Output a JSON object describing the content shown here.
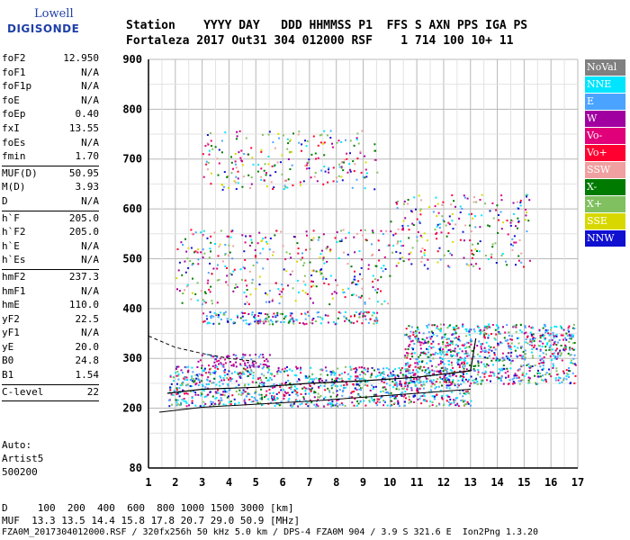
{
  "logo": {
    "line1": "Lowell",
    "line2": "DIGISONDE"
  },
  "header": {
    "labels": "Station    YYYY DAY   DDD HHMMSS P1  FFS S AXN PPS IGA PS",
    "values": "Fortaleza 2017 Out31 304 012000 RSF    1 714 100 10+ 11"
  },
  "params": [
    {
      "k": "foF2",
      "v": "12.950"
    },
    {
      "k": "foF1",
      "v": "N/A"
    },
    {
      "k": "foF1p",
      "v": "N/A"
    },
    {
      "k": "foE",
      "v": "N/A"
    },
    {
      "k": "foEp",
      "v": "0.40"
    },
    {
      "k": "fxI",
      "v": "13.55"
    },
    {
      "k": "foEs",
      "v": "N/A"
    },
    {
      "k": "fmin",
      "v": "1.70"
    },
    {
      "sep": true
    },
    {
      "k": "MUF(D)",
      "v": "50.95"
    },
    {
      "k": "M(D)",
      "v": "3.93"
    },
    {
      "k": "D",
      "v": "N/A"
    },
    {
      "sep": true
    },
    {
      "k": "h`F",
      "v": "205.0"
    },
    {
      "k": "h`F2",
      "v": "205.0"
    },
    {
      "k": "h`E",
      "v": "N/A"
    },
    {
      "k": "h`Es",
      "v": "N/A"
    },
    {
      "sep": true
    },
    {
      "k": "hmF2",
      "v": "237.3"
    },
    {
      "k": "hmF1",
      "v": "N/A"
    },
    {
      "k": "hmE",
      "v": "110.0"
    },
    {
      "k": "yF2",
      "v": "22.5"
    },
    {
      "k": "yF1",
      "v": "N/A"
    },
    {
      "k": "yE",
      "v": "20.0"
    },
    {
      "k": "B0",
      "v": "24.8"
    },
    {
      "k": "B1",
      "v": "1.54"
    },
    {
      "sep": true
    },
    {
      "k": "C-level",
      "v": "22"
    },
    {
      "sep": true
    }
  ],
  "auto": {
    "l1": "Auto:",
    "l2": "Artist5",
    "l3": "500200"
  },
  "legend": [
    {
      "label": "NoVal",
      "color": "#808080"
    },
    {
      "label": "NNE",
      "color": "#00e5ff"
    },
    {
      "label": "E",
      "color": "#4aa3ff"
    },
    {
      "label": "W",
      "color": "#a000a0"
    },
    {
      "label": "Vo-",
      "color": "#e0007a"
    },
    {
      "label": "Vo+",
      "color": "#ff0030"
    },
    {
      "label": "SSW",
      "color": "#f0a0a0"
    },
    {
      "label": "X-",
      "color": "#007a00"
    },
    {
      "label": "X+",
      "color": "#80c060"
    },
    {
      "label": "SSE",
      "color": "#d8d800"
    },
    {
      "label": "NNW",
      "color": "#1010d0"
    }
  ],
  "bottom": {
    "l1": "D     100  200  400  600  800 1000 1500 3000 [km]",
    "l2": "MUF  13.3 13.5 14.4 15.8 17.8 20.7 29.0 50.9 [MHz]",
    "l3": "FZA0M_2017304012000.RSF / 320fx256h 50 kHz 5.0 km / DPS-4 FZA0M 904 / 3.9 S 321.6 E  Ion2Png 1.3.20"
  },
  "chart_data": {
    "type": "scatter",
    "title": "",
    "xlabel": "",
    "ylabel": "",
    "xlim": [
      1,
      17
    ],
    "ylim": [
      80,
      900
    ],
    "xticks": [
      1,
      2,
      3,
      4,
      5,
      6,
      7,
      8,
      9,
      10,
      11,
      12,
      13,
      14,
      15,
      16,
      17
    ],
    "yticks": [
      80,
      200,
      300,
      400,
      500,
      600,
      700,
      800,
      900
    ],
    "grid": true,
    "clusters": [
      {
        "x0": 1.7,
        "x1": 13.0,
        "y0": 205,
        "y1": 285,
        "mode": "E"
      },
      {
        "x0": 10.5,
        "x1": 16.9,
        "y0": 250,
        "y1": 370,
        "mode": "E"
      },
      {
        "x0": 2.8,
        "x1": 5.5,
        "y0": 285,
        "y1": 310,
        "mode": "W"
      },
      {
        "x0": 3.0,
        "x1": 9.5,
        "y0": 370,
        "y1": 395,
        "mode": "E"
      },
      {
        "x0": 2.0,
        "x1": 10.0,
        "y0": 410,
        "y1": 560,
        "mode": "mix"
      },
      {
        "x0": 10.0,
        "x1": 15.2,
        "y0": 480,
        "y1": 630,
        "mode": "mix"
      },
      {
        "x0": 3.0,
        "x1": 9.5,
        "y0": 640,
        "y1": 760,
        "mode": "mix"
      }
    ],
    "profile_line": [
      [
        1.4,
        192
      ],
      [
        3,
        202
      ],
      [
        5,
        208
      ],
      [
        7,
        214
      ],
      [
        9,
        222
      ],
      [
        11,
        230
      ],
      [
        13,
        238
      ]
    ],
    "trace_line": [
      [
        1.7,
        230
      ],
      [
        3,
        238
      ],
      [
        5,
        242
      ],
      [
        7,
        250
      ],
      [
        9,
        255
      ],
      [
        11,
        262
      ],
      [
        13,
        275
      ],
      [
        13.2,
        340
      ]
    ],
    "dashed_line": [
      [
        1,
        345
      ],
      [
        2,
        322
      ],
      [
        3,
        310
      ],
      [
        4,
        300
      ],
      [
        5,
        294
      ]
    ]
  }
}
